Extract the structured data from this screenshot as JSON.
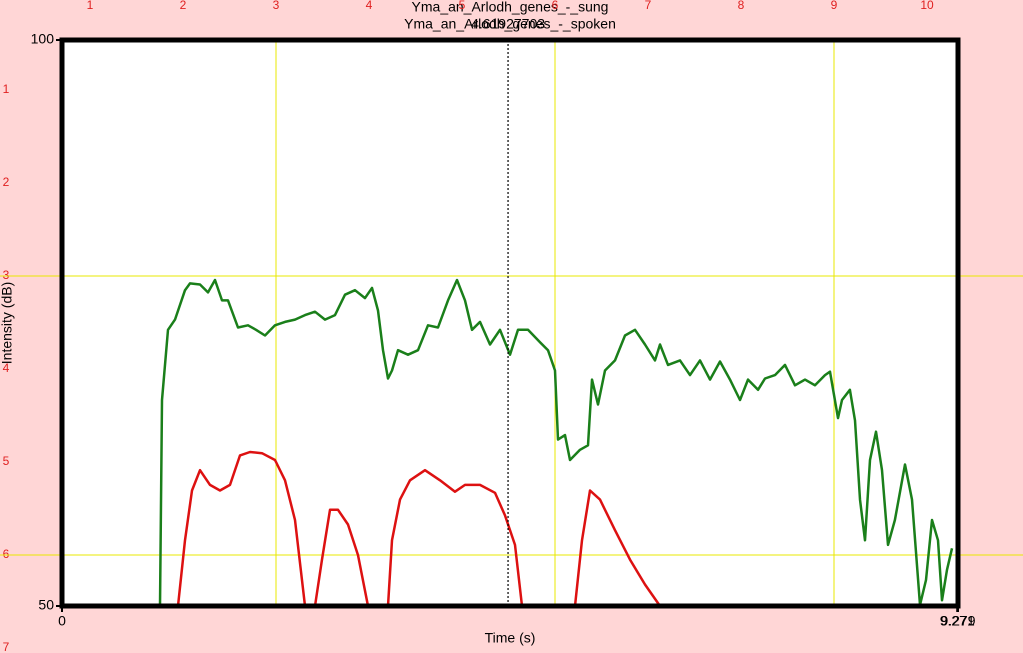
{
  "chart_data": {
    "type": "line",
    "titles": [
      "Yma_an_Arlodh_genes_-_sung",
      "Yma_an_Arlodh_genes_-_spoken"
    ],
    "x_label": "Time (s)",
    "y_label": "Intensity (dB)",
    "xlim": [
      0,
      9.279
    ],
    "ylim": [
      50,
      100
    ],
    "xticks": [
      0,
      9.271,
      9.279
    ],
    "yticks": [
      50,
      100
    ],
    "cursor": 4.61927703,
    "ruler_top": [
      1,
      2,
      3,
      4,
      5,
      6,
      7,
      8,
      9,
      10
    ],
    "ruler_left": [
      1,
      2,
      3,
      4,
      5,
      6,
      7
    ],
    "series": [
      {
        "name": "Yma_an_Arlodh_genes_-_sung",
        "color": "#1a7f1a",
        "x": [
          1.015,
          1.036,
          1.098,
          1.17,
          1.274,
          1.326,
          1.429,
          1.512,
          1.584,
          1.657,
          1.719,
          1.823,
          1.926,
          2.009,
          2.102,
          2.206,
          2.309,
          2.413,
          2.516,
          2.62,
          2.724,
          2.827,
          2.931,
          3.034,
          3.138,
          3.21,
          3.272,
          3.324,
          3.376,
          3.418,
          3.48,
          3.583,
          3.687,
          3.79,
          3.894,
          3.997,
          4.091,
          4.173,
          4.246,
          4.329,
          4.432,
          4.536,
          4.639,
          4.722,
          4.826,
          4.95,
          5.033,
          5.106,
          5.137,
          5.209,
          5.261,
          5.364,
          5.447,
          5.489,
          5.551,
          5.623,
          5.727,
          5.83,
          5.934,
          6.038,
          6.141,
          6.193,
          6.276,
          6.4,
          6.504,
          6.607,
          6.711,
          6.814,
          6.918,
          7.021,
          7.104,
          7.208,
          7.28,
          7.384,
          7.487,
          7.591,
          7.695,
          7.798,
          7.902,
          7.953,
          8.036,
          8.078,
          8.16,
          8.212,
          8.264,
          8.316,
          8.368,
          8.43,
          8.492,
          8.554,
          8.626,
          8.73,
          8.803,
          8.885,
          8.948,
          9.01,
          9.072,
          9.113,
          9.165,
          9.217
        ],
        "values": [
          50.0,
          68.2,
          74.4,
          75.3,
          77.9,
          78.5,
          78.4,
          77.7,
          78.8,
          77.0,
          77.0,
          74.6,
          74.8,
          74.4,
          73.9,
          74.8,
          75.1,
          75.3,
          75.7,
          76.0,
          75.3,
          75.7,
          77.5,
          77.9,
          77.2,
          78.1,
          76.1,
          72.6,
          70.1,
          70.8,
          72.6,
          72.2,
          72.6,
          74.8,
          74.6,
          77.0,
          78.8,
          77.0,
          74.4,
          75.1,
          73.1,
          74.4,
          72.2,
          74.4,
          74.4,
          73.3,
          72.6,
          70.8,
          64.7,
          65.1,
          62.9,
          63.8,
          64.2,
          70.0,
          67.8,
          70.8,
          71.7,
          73.9,
          74.4,
          73.1,
          71.7,
          73.1,
          71.3,
          71.7,
          70.4,
          71.7,
          70.0,
          71.6,
          70.0,
          68.2,
          70.0,
          69.1,
          70.1,
          70.4,
          71.3,
          69.5,
          70.0,
          69.5,
          70.4,
          70.7,
          66.6,
          68.2,
          69.1,
          66.4,
          59.4,
          55.8,
          62.9,
          65.4,
          62.0,
          55.4,
          57.6,
          62.5,
          59.4,
          50.1,
          52.3,
          57.6,
          55.8,
          50.5,
          53.2,
          55.1
        ]
      },
      {
        "name": "Yma_an_Arlodh_genes_-_spoken",
        "color": "#dd1111",
        "x": [
          1.201,
          1.274,
          1.346,
          1.429,
          1.533,
          1.636,
          1.74,
          1.843,
          1.947,
          2.071,
          2.206,
          2.309,
          2.413,
          2.516,
          2.57,
          2.62,
          2.693,
          2.775,
          2.858,
          2.962,
          3.065,
          3.169,
          3.27,
          3.376,
          3.418,
          3.5,
          3.604,
          3.759,
          3.915,
          4.07,
          4.173,
          4.329,
          4.484,
          4.588,
          4.691,
          4.764,
          5.0,
          5.313,
          5.385,
          5.468,
          5.572,
          5.727,
          5.882,
          6.038,
          6.193
        ],
        "values": [
          50.0,
          55.8,
          60.2,
          62.0,
          60.7,
          60.2,
          60.7,
          63.3,
          63.6,
          63.5,
          62.9,
          61.1,
          57.6,
          50.0,
          null,
          50.0,
          54.1,
          58.5,
          58.5,
          57.2,
          54.5,
          50.0,
          null,
          50.0,
          55.8,
          59.4,
          61.1,
          62.0,
          61.1,
          60.1,
          60.7,
          60.7,
          60.0,
          58.0,
          55.4,
          50.0,
          null,
          50.0,
          55.8,
          60.2,
          59.4,
          56.7,
          54.1,
          51.9,
          50.0
        ]
      }
    ]
  }
}
